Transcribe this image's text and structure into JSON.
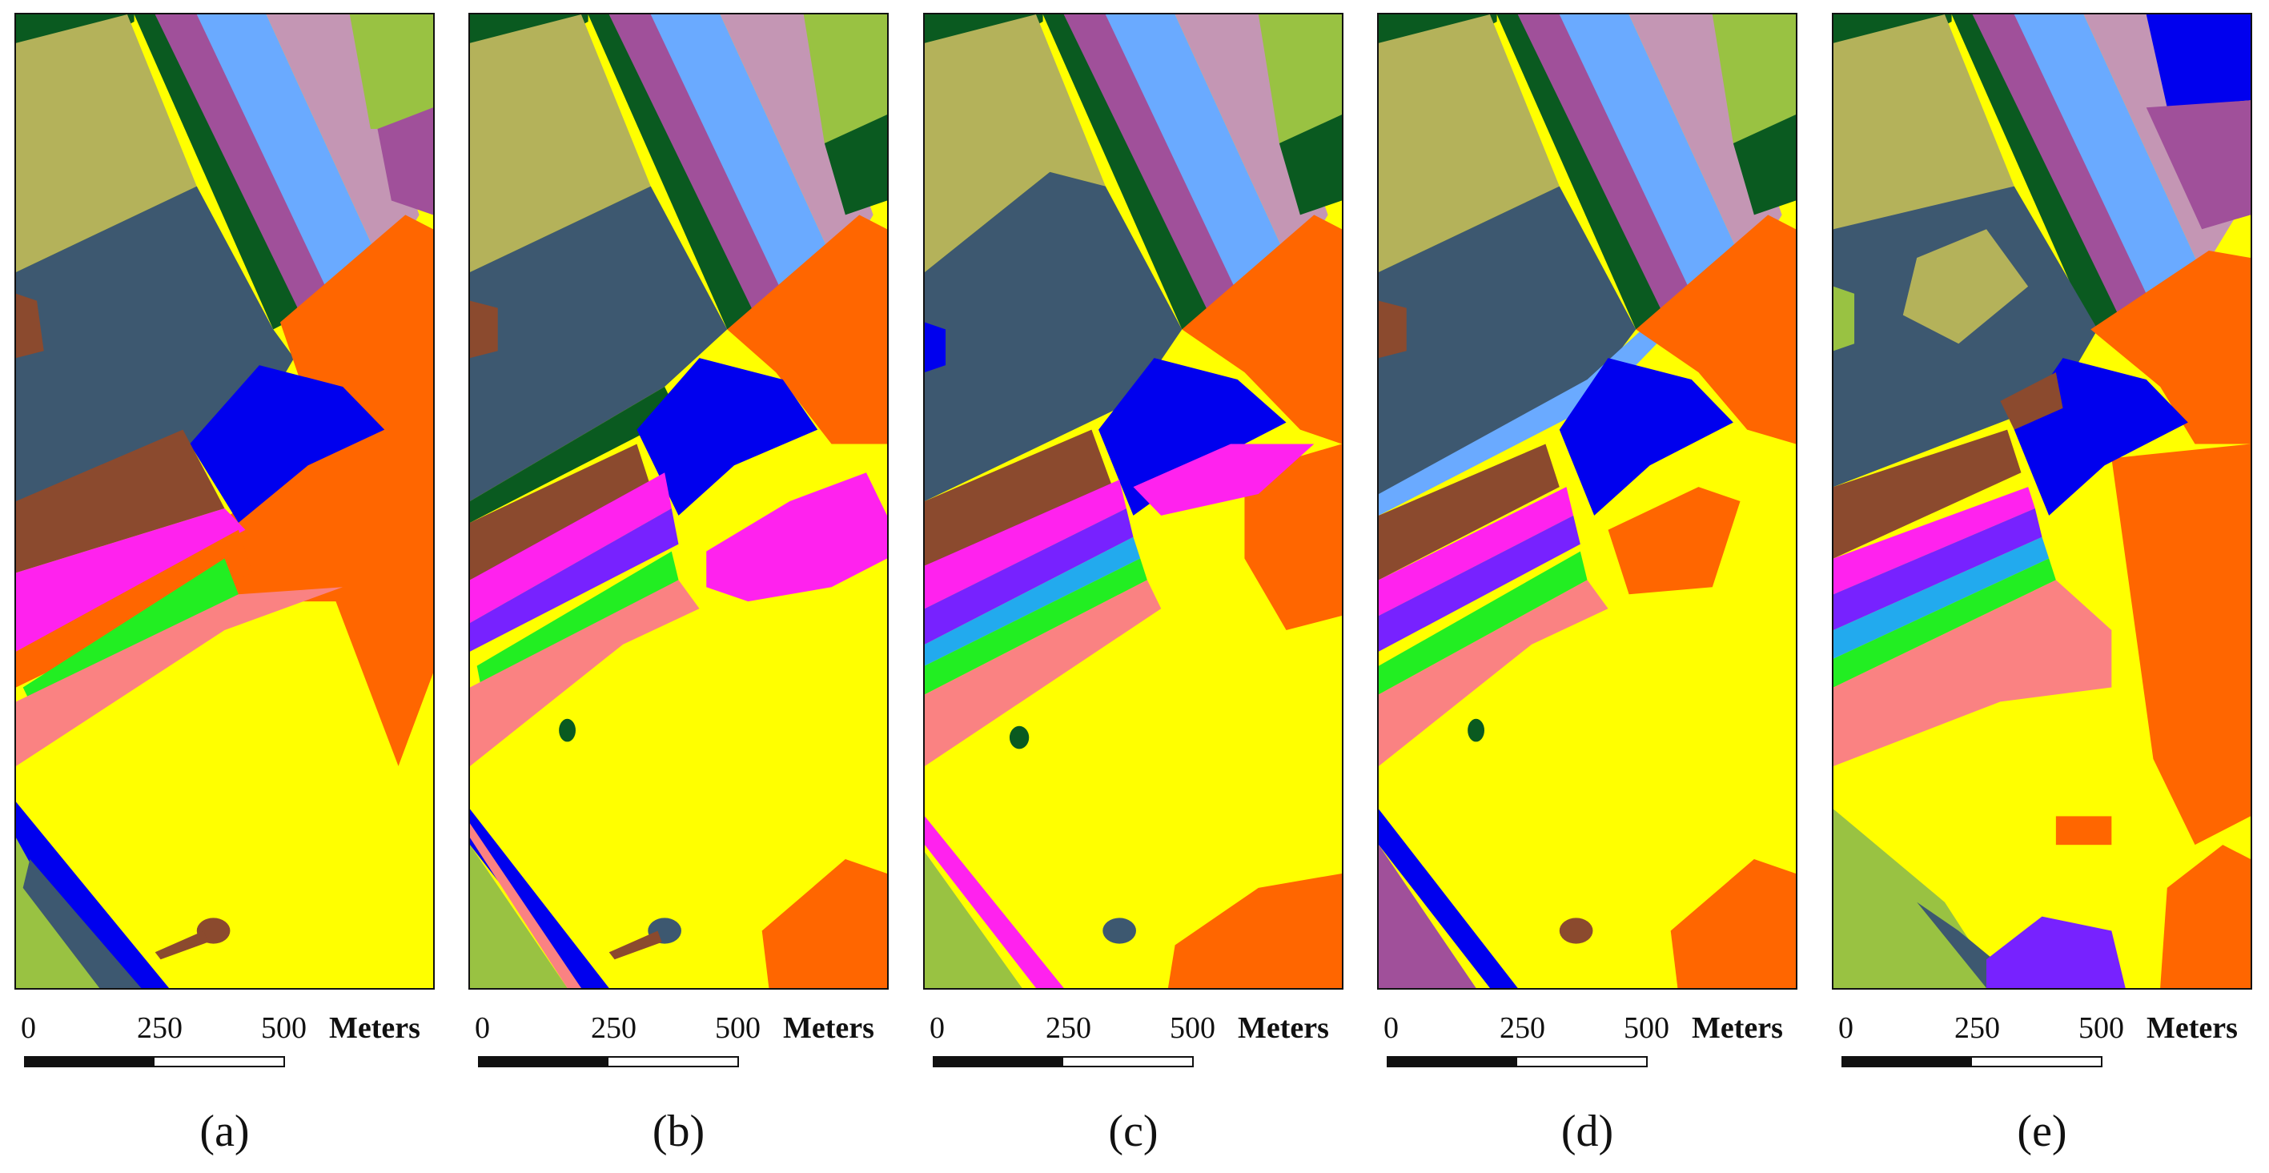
{
  "panels": [
    {
      "label": "(a)"
    },
    {
      "label": "(b)"
    },
    {
      "label": "(c)"
    },
    {
      "label": "(d)"
    },
    {
      "label": "(e)"
    }
  ],
  "scalebar": {
    "ticks": [
      "0",
      "250",
      "500"
    ],
    "unit": "Meters"
  },
  "colors": {
    "yellow_field": "#ffff00",
    "slate": "#3d5870",
    "olive": "#b4b25a",
    "dark_green": "#0a5a20",
    "purple": "#a0509a",
    "sky_blue": "#6aaaff",
    "mauve": "#c496b4",
    "light_green": "#99c242",
    "orange": "#ff6600",
    "blue": "#0000ee",
    "brown": "#8b4a2e",
    "magenta": "#ff22ee",
    "violet": "#7722ff",
    "lime": "#22ee22",
    "salmon": "#fa8282",
    "cyan": "#22aaee"
  }
}
